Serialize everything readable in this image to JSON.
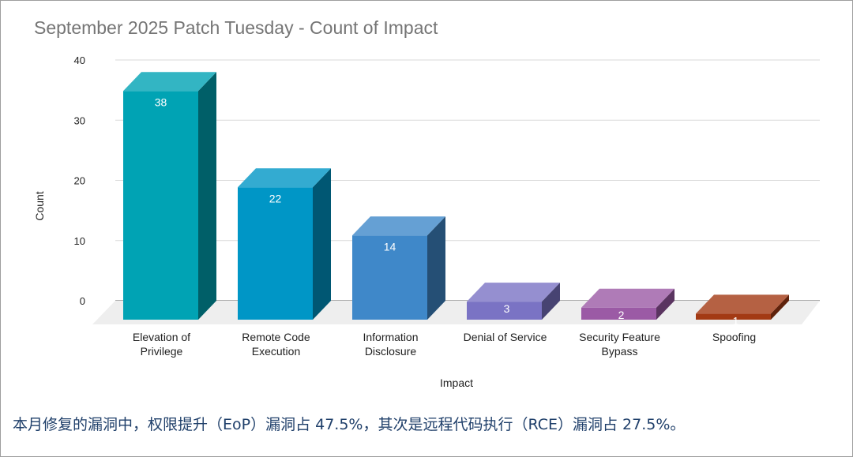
{
  "chart_data": {
    "type": "bar",
    "title": "September 2025 Patch Tuesday - Count of Impact",
    "xlabel": "Impact",
    "ylabel": "Count",
    "ylim": [
      0,
      40
    ],
    "yticks": [
      0,
      10,
      20,
      30,
      40
    ],
    "grid": true,
    "categories": [
      [
        "Elevation of",
        "Privilege"
      ],
      [
        "Remote Code",
        "Execution"
      ],
      [
        "Information",
        "Disclosure"
      ],
      [
        "Denial of Service"
      ],
      [
        "Security Feature",
        "Bypass"
      ],
      [
        "Spoofing"
      ]
    ],
    "values": [
      38,
      22,
      14,
      3,
      2,
      1
    ],
    "colors": [
      "#00a3b4",
      "#0096c6",
      "#3f88c9",
      "#7a73c4",
      "#9b5aa5",
      "#a33a14"
    ]
  },
  "caption": "本月修复的漏洞中，权限提升（EoP）漏洞占 47.5%，其次是远程代码执行（RCE）漏洞占 27.5%。"
}
